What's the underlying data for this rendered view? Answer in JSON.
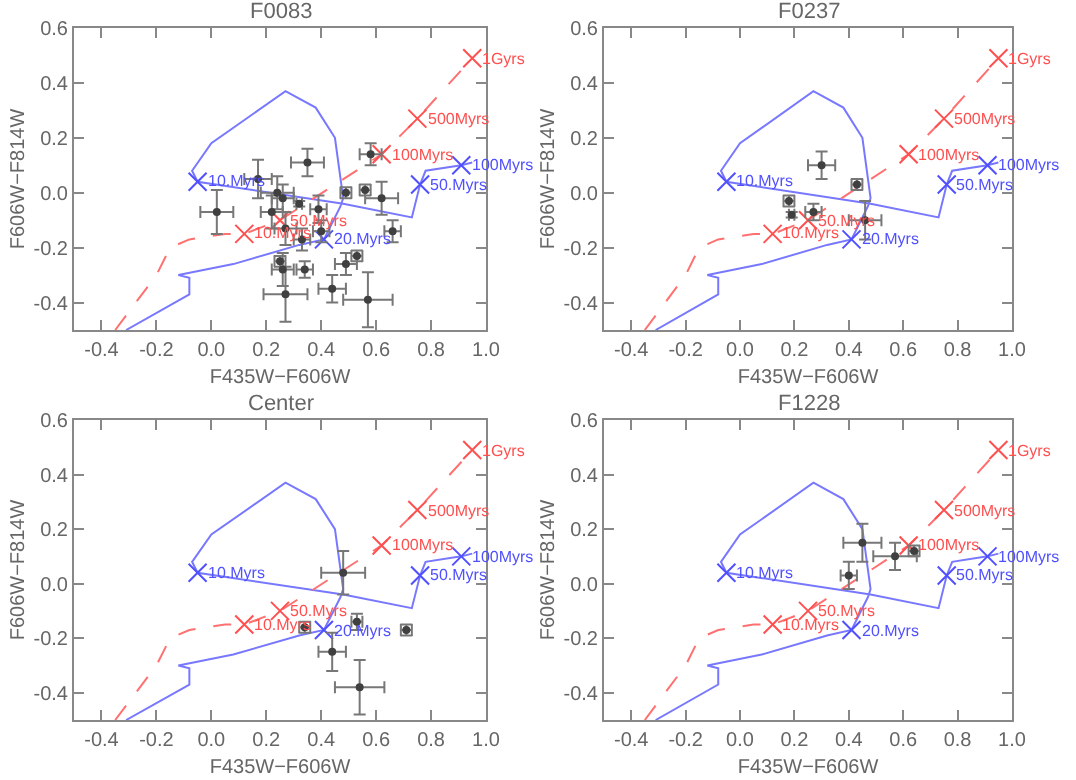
{
  "chart_data": [
    {
      "type": "scatter",
      "title": "F0083",
      "xlabel": "F435W−F606W",
      "ylabel": "F606W−F814W",
      "xlim": [
        -0.5,
        1.0
      ],
      "ylim": [
        -0.5,
        0.6
      ],
      "xticks": [
        {
          "value": -0.4,
          "label": "-0.4"
        },
        {
          "value": -0.2,
          "label": "-0.2"
        },
        {
          "value": 0.0,
          "label": "0.0"
        },
        {
          "value": 0.2,
          "label": "0.2"
        },
        {
          "value": 0.4,
          "label": "0.4"
        },
        {
          "value": 0.6,
          "label": "0.6"
        },
        {
          "value": 0.8,
          "label": "0.8"
        },
        {
          "value": 1.0,
          "label": "1.0"
        }
      ],
      "yticks": [
        {
          "value": -0.4,
          "label": "-0.4"
        },
        {
          "value": -0.2,
          "label": "-0.2"
        },
        {
          "value": 0.0,
          "label": "0.0"
        },
        {
          "value": 0.2,
          "label": "0.2"
        },
        {
          "value": 0.4,
          "label": "0.4"
        },
        {
          "value": 0.6,
          "label": "0.6"
        }
      ],
      "series": [
        {
          "type": "line",
          "color": "#7878ff",
          "line_style": "solid",
          "marker": "none",
          "x": [
            -0.31,
            -0.08,
            -0.08,
            -0.12,
            0.08,
            0.32,
            0.41,
            0.47,
            0.48,
            0.45,
            0.38,
            0.27,
            0.0,
            -0.07,
            -0.05,
            0.48,
            0.73,
            0.76,
            0.78,
            0.91,
            0.95
          ],
          "values": [
            -0.5,
            -0.37,
            -0.31,
            -0.3,
            -0.26,
            -0.19,
            -0.17,
            -0.05,
            -0.02,
            0.2,
            0.31,
            0.37,
            0.18,
            0.08,
            0.04,
            -0.04,
            -0.09,
            0.03,
            0.08,
            0.1,
            0.11
          ]
        },
        {
          "type": "line",
          "color": "#ff7070",
          "line_style": "dashed",
          "marker": "none",
          "x": [
            -0.35,
            -0.2,
            -0.15,
            -0.08,
            0.05,
            0.12,
            0.25,
            0.62,
            0.75,
            0.95
          ],
          "values": [
            -0.5,
            -0.3,
            -0.2,
            -0.17,
            -0.15,
            -0.15,
            -0.1,
            0.14,
            0.27,
            0.49
          ]
        },
        {
          "color": "#ff5050",
          "marker": "cross",
          "x": [
            0.12,
            0.25,
            0.62,
            0.75,
            0.95
          ],
          "values": [
            -0.15,
            -0.1,
            0.14,
            0.27,
            0.49
          ]
        },
        {
          "color": "#5050ff",
          "marker": "cross",
          "x": [
            -0.05,
            0.41,
            0.76,
            0.91
          ],
          "values": [
            0.04,
            -0.17,
            0.03,
            0.1
          ]
        },
        {
          "color": "#404040",
          "marker": "circle",
          "x": [
            0.02,
            0.17,
            0.24,
            0.26,
            0.32,
            0.22,
            0.27,
            0.39,
            0.49,
            0.56,
            0.58,
            0.62,
            0.66,
            0.4,
            0.33,
            0.25,
            0.34,
            0.26,
            0.27,
            0.44,
            0.49,
            0.53,
            0.57,
            0.35
          ],
          "values": [
            -0.07,
            0.05,
            0.0,
            -0.02,
            -0.04,
            -0.07,
            -0.13,
            -0.06,
            0.0,
            0.01,
            0.14,
            -0.02,
            -0.14,
            -0.14,
            -0.17,
            -0.25,
            -0.28,
            -0.28,
            -0.37,
            -0.35,
            -0.26,
            -0.23,
            -0.39,
            0.11
          ],
          "xerrors": [
            0.06,
            0.05,
            0.06,
            0.04,
            0.01,
            0.04,
            0.04,
            0.03,
            0.02,
            0.02,
            0.04,
            0.06,
            0.03,
            0.03,
            0.03,
            0.02,
            0.03,
            0.04,
            0.08,
            0.05,
            0.04,
            0.02,
            0.09,
            0.06
          ],
          "errors": [
            0.08,
            0.07,
            0.06,
            0.05,
            0.01,
            0.06,
            0.06,
            0.05,
            0.02,
            0.02,
            0.04,
            0.06,
            0.04,
            0.04,
            0.04,
            0.02,
            0.03,
            0.06,
            0.1,
            0.05,
            0.04,
            0.02,
            0.1,
            0.05
          ]
        }
      ],
      "annotations": [
        {
          "text": "10.Myrs",
          "x": 0.12,
          "y": -0.15
        },
        {
          "text": "50.Myrs",
          "x": 0.25,
          "y": -0.1
        },
        {
          "text": "100Myrs",
          "x": 0.62,
          "y": 0.14
        },
        {
          "text": "500Myrs",
          "x": 0.75,
          "y": 0.27
        },
        {
          "text": "1Gyrs",
          "x": 0.95,
          "y": 0.49
        },
        {
          "text": "10.Myrs",
          "x": -0.05,
          "y": 0.04
        },
        {
          "text": "20.Myrs",
          "x": 0.41,
          "y": -0.17
        },
        {
          "text": "50.Myrs",
          "x": 0.76,
          "y": 0.03
        },
        {
          "text": "100Myrs",
          "x": 0.91,
          "y": 0.1
        }
      ]
    },
    {
      "type": "scatter",
      "title": "F0237",
      "xlabel": "F435W−F606W",
      "ylabel": "F606W−F814W",
      "xlim": [
        -0.5,
        1.0
      ],
      "ylim": [
        -0.5,
        0.6
      ],
      "xticks": [
        {
          "value": -0.4,
          "label": "-0.4"
        },
        {
          "value": -0.2,
          "label": "-0.2"
        },
        {
          "value": 0.0,
          "label": "0.0"
        },
        {
          "value": 0.2,
          "label": "0.2"
        },
        {
          "value": 0.4,
          "label": "0.4"
        },
        {
          "value": 0.6,
          "label": "0.6"
        },
        {
          "value": 0.8,
          "label": "0.8"
        },
        {
          "value": 1.0,
          "label": "1.0"
        }
      ],
      "yticks": [
        {
          "value": -0.4,
          "label": "-0.4"
        },
        {
          "value": -0.2,
          "label": "-0.2"
        },
        {
          "value": 0.0,
          "label": "0.0"
        },
        {
          "value": 0.2,
          "label": "0.2"
        },
        {
          "value": 0.4,
          "label": "0.4"
        },
        {
          "value": 0.6,
          "label": "0.6"
        }
      ],
      "series": [
        {
          "type": "line",
          "color": "#7878ff",
          "line_style": "solid",
          "marker": "none",
          "x": [
            -0.31,
            -0.08,
            -0.08,
            -0.12,
            0.08,
            0.32,
            0.41,
            0.47,
            0.48,
            0.45,
            0.38,
            0.27,
            0.0,
            -0.07,
            -0.05,
            0.48,
            0.73,
            0.76,
            0.78,
            0.91,
            0.95
          ],
          "values": [
            -0.5,
            -0.37,
            -0.31,
            -0.3,
            -0.26,
            -0.19,
            -0.17,
            -0.05,
            -0.02,
            0.2,
            0.31,
            0.37,
            0.18,
            0.08,
            0.04,
            -0.04,
            -0.09,
            0.03,
            0.08,
            0.1,
            0.11
          ]
        },
        {
          "type": "line",
          "color": "#ff7070",
          "line_style": "dashed",
          "marker": "none",
          "x": [
            -0.35,
            -0.2,
            -0.15,
            -0.08,
            0.05,
            0.12,
            0.25,
            0.62,
            0.75,
            0.95
          ],
          "values": [
            -0.5,
            -0.3,
            -0.2,
            -0.17,
            -0.15,
            -0.15,
            -0.1,
            0.14,
            0.27,
            0.49
          ]
        },
        {
          "color": "#ff5050",
          "marker": "cross",
          "x": [
            0.12,
            0.25,
            0.62,
            0.75,
            0.95
          ],
          "values": [
            -0.15,
            -0.1,
            0.14,
            0.27,
            0.49
          ]
        },
        {
          "color": "#5050ff",
          "marker": "cross",
          "x": [
            -0.05,
            0.41,
            0.76,
            0.91
          ],
          "values": [
            0.04,
            -0.17,
            0.03,
            0.1
          ]
        },
        {
          "color": "#404040",
          "marker": "circle",
          "x": [
            0.3,
            0.43,
            0.18,
            0.19,
            0.27,
            0.46
          ],
          "values": [
            0.1,
            0.03,
            -0.03,
            -0.08,
            -0.07,
            -0.1
          ],
          "xerrors": [
            0.05,
            0.02,
            0.02,
            0.01,
            0.03,
            0.06
          ],
          "errors": [
            0.05,
            0.02,
            0.02,
            0.01,
            0.03,
            0.07
          ]
        }
      ],
      "annotations": [
        {
          "text": "10.Myrs",
          "x": 0.12,
          "y": -0.15
        },
        {
          "text": "50.Myrs",
          "x": 0.25,
          "y": -0.1
        },
        {
          "text": "100Myrs",
          "x": 0.62,
          "y": 0.14
        },
        {
          "text": "500Myrs",
          "x": 0.75,
          "y": 0.27
        },
        {
          "text": "1Gyrs",
          "x": 0.95,
          "y": 0.49
        },
        {
          "text": "10.Myrs",
          "x": -0.05,
          "y": 0.04
        },
        {
          "text": "20.Myrs",
          "x": 0.41,
          "y": -0.17
        },
        {
          "text": "50.Myrs",
          "x": 0.76,
          "y": 0.03
        },
        {
          "text": "100Myrs",
          "x": 0.91,
          "y": 0.1
        }
      ]
    },
    {
      "type": "scatter",
      "title": "Center",
      "xlabel": "F435W−F606W",
      "ylabel": "F606W−F814W",
      "xlim": [
        -0.5,
        1.0
      ],
      "ylim": [
        -0.5,
        0.6
      ],
      "xticks": [
        {
          "value": -0.4,
          "label": "-0.4"
        },
        {
          "value": -0.2,
          "label": "-0.2"
        },
        {
          "value": 0.0,
          "label": "0.0"
        },
        {
          "value": 0.2,
          "label": "0.2"
        },
        {
          "value": 0.4,
          "label": "0.4"
        },
        {
          "value": 0.6,
          "label": "0.6"
        },
        {
          "value": 0.8,
          "label": "0.8"
        },
        {
          "value": 1.0,
          "label": "1.0"
        }
      ],
      "yticks": [
        {
          "value": -0.4,
          "label": "-0.4"
        },
        {
          "value": -0.2,
          "label": "-0.2"
        },
        {
          "value": 0.0,
          "label": "0.0"
        },
        {
          "value": 0.2,
          "label": "0.2"
        },
        {
          "value": 0.4,
          "label": "0.4"
        },
        {
          "value": 0.6,
          "label": "0.6"
        }
      ],
      "series": [
        {
          "type": "line",
          "color": "#7878ff",
          "line_style": "solid",
          "marker": "none",
          "x": [
            -0.31,
            -0.08,
            -0.08,
            -0.12,
            0.08,
            0.32,
            0.41,
            0.47,
            0.48,
            0.45,
            0.38,
            0.27,
            0.0,
            -0.07,
            -0.05,
            0.48,
            0.73,
            0.76,
            0.78,
            0.91,
            0.95
          ],
          "values": [
            -0.5,
            -0.37,
            -0.31,
            -0.3,
            -0.26,
            -0.19,
            -0.17,
            -0.05,
            -0.02,
            0.2,
            0.31,
            0.37,
            0.18,
            0.08,
            0.04,
            -0.04,
            -0.09,
            0.03,
            0.08,
            0.1,
            0.11
          ]
        },
        {
          "type": "line",
          "color": "#ff7070",
          "line_style": "dashed",
          "marker": "none",
          "x": [
            -0.35,
            -0.2,
            -0.15,
            -0.08,
            0.05,
            0.12,
            0.25,
            0.62,
            0.75,
            0.95
          ],
          "values": [
            -0.5,
            -0.3,
            -0.2,
            -0.17,
            -0.15,
            -0.15,
            -0.1,
            0.14,
            0.27,
            0.49
          ]
        },
        {
          "color": "#ff5050",
          "marker": "cross",
          "x": [
            0.12,
            0.25,
            0.62,
            0.75,
            0.95
          ],
          "values": [
            -0.15,
            -0.1,
            0.14,
            0.27,
            0.49
          ]
        },
        {
          "color": "#5050ff",
          "marker": "cross",
          "x": [
            -0.05,
            0.41,
            0.76,
            0.91
          ],
          "values": [
            0.04,
            -0.17,
            0.03,
            0.1
          ]
        },
        {
          "color": "#404040",
          "marker": "circle",
          "x": [
            0.48,
            0.34,
            0.53,
            0.44,
            0.54,
            0.71
          ],
          "values": [
            0.04,
            -0.16,
            -0.14,
            -0.25,
            -0.38,
            -0.17
          ],
          "xerrors": [
            0.08,
            0.02,
            0.02,
            0.05,
            0.09,
            0.02
          ],
          "errors": [
            0.08,
            0.02,
            0.03,
            0.07,
            0.1,
            0.02
          ]
        }
      ],
      "annotations": [
        {
          "text": "10.Myrs",
          "x": 0.12,
          "y": -0.15
        },
        {
          "text": "50.Myrs",
          "x": 0.25,
          "y": -0.1
        },
        {
          "text": "100Myrs",
          "x": 0.62,
          "y": 0.14
        },
        {
          "text": "500Myrs",
          "x": 0.75,
          "y": 0.27
        },
        {
          "text": "1Gyrs",
          "x": 0.95,
          "y": 0.49
        },
        {
          "text": "10.Myrs",
          "x": -0.05,
          "y": 0.04
        },
        {
          "text": "20.Myrs",
          "x": 0.41,
          "y": -0.17
        },
        {
          "text": "50.Myrs",
          "x": 0.76,
          "y": 0.03
        },
        {
          "text": "100Myrs",
          "x": 0.91,
          "y": 0.1
        }
      ]
    },
    {
      "type": "scatter",
      "title": "F1228",
      "xlabel": "F435W−F606W",
      "ylabel": "F606W−F814W",
      "xlim": [
        -0.5,
        1.0
      ],
      "ylim": [
        -0.5,
        0.6
      ],
      "xticks": [
        {
          "value": -0.4,
          "label": "-0.4"
        },
        {
          "value": -0.2,
          "label": "-0.2"
        },
        {
          "value": 0.0,
          "label": "0.0"
        },
        {
          "value": 0.2,
          "label": "0.2"
        },
        {
          "value": 0.4,
          "label": "0.4"
        },
        {
          "value": 0.6,
          "label": "0.6"
        },
        {
          "value": 0.8,
          "label": "0.8"
        },
        {
          "value": 1.0,
          "label": "1.0"
        }
      ],
      "yticks": [
        {
          "value": -0.4,
          "label": "-0.4"
        },
        {
          "value": -0.2,
          "label": "-0.2"
        },
        {
          "value": 0.0,
          "label": "0.0"
        },
        {
          "value": 0.2,
          "label": "0.2"
        },
        {
          "value": 0.4,
          "label": "0.4"
        },
        {
          "value": 0.6,
          "label": "0.6"
        }
      ],
      "series": [
        {
          "type": "line",
          "color": "#7878ff",
          "line_style": "solid",
          "marker": "none",
          "x": [
            -0.31,
            -0.08,
            -0.08,
            -0.12,
            0.08,
            0.32,
            0.41,
            0.47,
            0.48,
            0.45,
            0.38,
            0.27,
            0.0,
            -0.07,
            -0.05,
            0.48,
            0.73,
            0.76,
            0.78,
            0.91,
            0.95
          ],
          "values": [
            -0.5,
            -0.37,
            -0.31,
            -0.3,
            -0.26,
            -0.19,
            -0.17,
            -0.05,
            -0.02,
            0.2,
            0.31,
            0.37,
            0.18,
            0.08,
            0.04,
            -0.04,
            -0.09,
            0.03,
            0.08,
            0.1,
            0.11
          ]
        },
        {
          "type": "line",
          "color": "#ff7070",
          "line_style": "dashed",
          "marker": "none",
          "x": [
            -0.35,
            -0.2,
            -0.15,
            -0.08,
            0.05,
            0.12,
            0.25,
            0.62,
            0.75,
            0.95
          ],
          "values": [
            -0.5,
            -0.3,
            -0.2,
            -0.17,
            -0.15,
            -0.15,
            -0.1,
            0.14,
            0.27,
            0.49
          ]
        },
        {
          "color": "#ff5050",
          "marker": "cross",
          "x": [
            0.12,
            0.25,
            0.62,
            0.75,
            0.95
          ],
          "values": [
            -0.15,
            -0.1,
            0.14,
            0.27,
            0.49
          ]
        },
        {
          "color": "#5050ff",
          "marker": "cross",
          "x": [
            -0.05,
            0.41,
            0.76,
            0.91
          ],
          "values": [
            0.04,
            -0.17,
            0.03,
            0.1
          ]
        },
        {
          "color": "#404040",
          "marker": "circle",
          "x": [
            0.4,
            0.45,
            0.57,
            0.64
          ],
          "values": [
            0.03,
            0.15,
            0.1,
            0.12
          ],
          "xerrors": [
            0.03,
            0.07,
            0.08,
            0.02
          ],
          "errors": [
            0.05,
            0.07,
            0.05,
            0.02
          ]
        }
      ],
      "annotations": [
        {
          "text": "10.Myrs",
          "x": 0.12,
          "y": -0.15
        },
        {
          "text": "50.Myrs",
          "x": 0.25,
          "y": -0.1
        },
        {
          "text": "100Myrs",
          "x": 0.62,
          "y": 0.14
        },
        {
          "text": "500Myrs",
          "x": 0.75,
          "y": 0.27
        },
        {
          "text": "1Gyrs",
          "x": 0.95,
          "y": 0.49
        },
        {
          "text": "10.Myrs",
          "x": -0.05,
          "y": 0.04
        },
        {
          "text": "20.Myrs",
          "x": 0.41,
          "y": -0.17
        },
        {
          "text": "50.Myrs",
          "x": 0.76,
          "y": 0.03
        },
        {
          "text": "100Myrs",
          "x": 0.91,
          "y": 0.1
        }
      ]
    }
  ]
}
